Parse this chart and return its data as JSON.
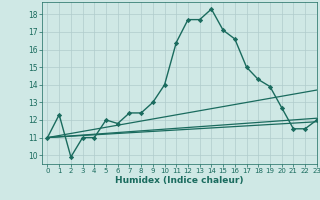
{
  "title": "",
  "xlabel": "Humidex (Indice chaleur)",
  "ylabel": "",
  "background_color": "#cfe8e5",
  "grid_color": "#b0cccc",
  "line_color": "#1a6b5e",
  "xlim": [
    -0.5,
    23
  ],
  "ylim": [
    9.5,
    18.7
  ],
  "xticks": [
    0,
    1,
    2,
    3,
    4,
    5,
    6,
    7,
    8,
    9,
    10,
    11,
    12,
    13,
    14,
    15,
    16,
    17,
    18,
    19,
    20,
    21,
    22,
    23
  ],
  "yticks": [
    10,
    11,
    12,
    13,
    14,
    15,
    16,
    17,
    18
  ],
  "series": [
    {
      "x": [
        0,
        1,
        2,
        3,
        4,
        5,
        6,
        7,
        8,
        9,
        10,
        11,
        12,
        13,
        14,
        15,
        16,
        17,
        18,
        19,
        20,
        21,
        22,
        23
      ],
      "y": [
        11.0,
        12.3,
        9.9,
        11.0,
        11.0,
        12.0,
        11.8,
        12.4,
        12.4,
        13.0,
        14.0,
        16.4,
        17.7,
        17.7,
        18.3,
        17.1,
        16.6,
        15.0,
        14.3,
        13.9,
        12.7,
        11.5,
        11.5,
        12.0
      ],
      "marker": "D",
      "markersize": 2.2,
      "linewidth": 1.0
    },
    {
      "x": [
        0,
        23
      ],
      "y": [
        11.0,
        13.7
      ],
      "marker": null,
      "markersize": 0,
      "linewidth": 0.9
    },
    {
      "x": [
        0,
        23
      ],
      "y": [
        11.0,
        12.1
      ],
      "marker": null,
      "markersize": 0,
      "linewidth": 0.9
    },
    {
      "x": [
        0,
        23
      ],
      "y": [
        11.0,
        11.9
      ],
      "marker": null,
      "markersize": 0,
      "linewidth": 0.9
    }
  ]
}
